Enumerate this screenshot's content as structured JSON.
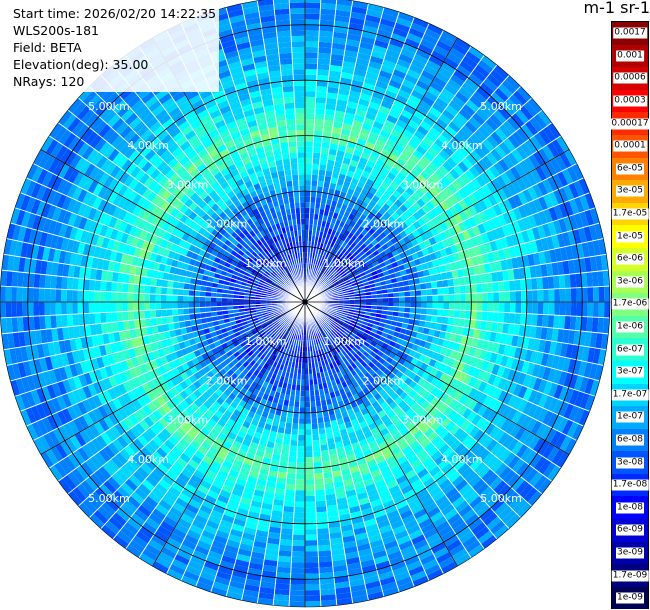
{
  "info": {
    "start_time": "Start time: 2026/02/20 14:22:35",
    "instrument": "WLS200s-181",
    "field": "Field: BETA",
    "elevation": "Elevation(deg): 35.00",
    "nrays": "NRays: 120"
  },
  "colorbar": {
    "unit_label": "m-1 sr-1",
    "ticks": [
      "0.0017",
      "0.001",
      "0.0006",
      "0.0003",
      "0.00017",
      "0.0001",
      "6e-05",
      "3e-05",
      "1.7e-05",
      "1e-05",
      "6e-06",
      "3e-06",
      "1.7e-06",
      "1e-06",
      "6e-07",
      "3e-07",
      "1.7e-07",
      "1e-07",
      "6e-08",
      "3e-08",
      "1.7e-08",
      "1e-08",
      "6e-09",
      "3e-09",
      "1.7e-09",
      "1e-09"
    ],
    "colors": [
      "#8b0000",
      "#b00000",
      "#d40000",
      "#ff0000",
      "#ff2a00",
      "#ff5500",
      "#ff8000",
      "#ffaa00",
      "#ffd400",
      "#ffff00",
      "#d4ff2a",
      "#aaff55",
      "#80ff80",
      "#55ffaa",
      "#2affd4",
      "#00ffff",
      "#00d4ff",
      "#00aaff",
      "#0080ff",
      "#0055ff",
      "#002aff",
      "#0000ff",
      "#0000d4",
      "#0000aa",
      "#000080",
      "#000055"
    ]
  },
  "chart_data": {
    "type": "heatmap",
    "projection": "polar (PPI)",
    "field": "BETA",
    "unit": "m-1 sr-1",
    "elevation_deg": 35.0,
    "nrays": 120,
    "max_range_km": 5.5,
    "range_rings_km": [
      1.0,
      2.0,
      3.0,
      4.0,
      5.0
    ],
    "range_ring_labels": [
      "1.00km",
      "2.00km",
      "3.00km",
      "4.00km",
      "5.00km"
    ],
    "radial_profile": [
      {
        "range_km": 0.0,
        "colorbar_index": 20
      },
      {
        "range_km": 1.0,
        "colorbar_index": 20
      },
      {
        "range_km": 1.5,
        "colorbar_index": 19
      },
      {
        "range_km": 2.0,
        "colorbar_index": 18
      },
      {
        "range_km": 2.3,
        "colorbar_index": 16
      },
      {
        "range_km": 2.7,
        "colorbar_index": 15
      },
      {
        "range_km": 3.1,
        "colorbar_index": 13
      },
      {
        "range_km": 3.5,
        "colorbar_index": 15
      },
      {
        "range_km": 4.0,
        "colorbar_index": 16
      },
      {
        "range_km": 4.5,
        "colorbar_index": 17
      },
      {
        "range_km": 5.0,
        "colorbar_index": 18
      },
      {
        "range_km": 5.5,
        "colorbar_index": 18
      }
    ]
  }
}
